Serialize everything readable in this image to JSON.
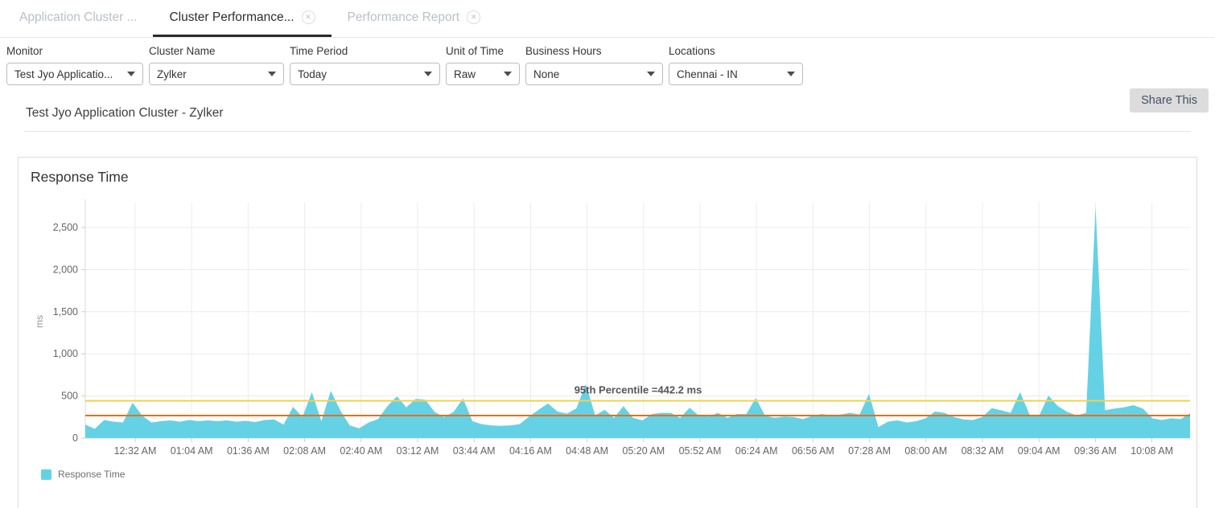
{
  "tabs": [
    {
      "label": "Application Cluster ...",
      "active": false,
      "closable": false
    },
    {
      "label": "Cluster Performance...",
      "active": true,
      "closable": true
    },
    {
      "label": "Performance Report",
      "active": false,
      "closable": true
    }
  ],
  "close_icon": "✕",
  "filters": [
    {
      "label": "Monitor",
      "value": "Test Jyo Applicatio..."
    },
    {
      "label": "Cluster Name",
      "value": "Zylker"
    },
    {
      "label": "Time Period",
      "value": "Today"
    },
    {
      "label": "Unit of Time",
      "value": "Raw"
    },
    {
      "label": "Business Hours",
      "value": "None"
    },
    {
      "label": "Locations",
      "value": "Chennai - IN"
    }
  ],
  "toolbar": {
    "share_label": "Share This"
  },
  "page_title": "Test Jyo Application Cluster - Zylker",
  "panel": {
    "title": "Response Time"
  },
  "chart_data": {
    "type": "area",
    "title": "Response Time",
    "ylabel": "ms",
    "ylim": [
      0,
      2750
    ],
    "y_ticks": [
      0,
      500,
      1000,
      1500,
      2000,
      2500
    ],
    "y_tick_labels": [
      "0",
      "500",
      "1,000",
      "1,500",
      "2,000",
      "2,500"
    ],
    "x_ticks": [
      "12:32 AM",
      "01:04 AM",
      "01:36 AM",
      "02:08 AM",
      "02:40 AM",
      "03:12 AM",
      "03:44 AM",
      "04:16 AM",
      "04:48 AM",
      "05:20 AM",
      "05:52 AM",
      "06:24 AM",
      "06:56 AM",
      "07:28 AM",
      "08:00 AM",
      "08:32 AM",
      "09:04 AM",
      "09:36 AM",
      "10:08 AM"
    ],
    "grid": true,
    "legend_position": "bottom-left",
    "series": [
      {
        "name": "Response Time",
        "color": "#65d1e5",
        "values": [
          160,
          110,
          215,
          195,
          185,
          420,
          270,
          185,
          200,
          210,
          195,
          215,
          200,
          210,
          200,
          210,
          195,
          205,
          190,
          215,
          220,
          160,
          370,
          250,
          545,
          200,
          560,
          330,
          150,
          115,
          185,
          225,
          380,
          495,
          365,
          465,
          455,
          310,
          250,
          310,
          470,
          200,
          165,
          150,
          145,
          150,
          165,
          255,
          335,
          410,
          315,
          290,
          350,
          640,
          270,
          335,
          240,
          380,
          240,
          210,
          285,
          300,
          300,
          240,
          360,
          265,
          255,
          300,
          240,
          285,
          285,
          475,
          265,
          240,
          255,
          250,
          225,
          265,
          285,
          270,
          280,
          300,
          280,
          525,
          130,
          195,
          210,
          185,
          200,
          235,
          315,
          300,
          250,
          220,
          215,
          250,
          355,
          330,
          300,
          545,
          280,
          260,
          505,
          380,
          310,
          270,
          300,
          2740,
          330,
          350,
          365,
          390,
          350,
          235,
          215,
          235,
          225,
          295
        ]
      }
    ],
    "reference_lines": [
      {
        "label": "95th Percentile =442.2 ms",
        "value": 442.2,
        "color": "#f2d24b"
      },
      {
        "label": "",
        "value": 267,
        "color": "#e2711d"
      }
    ],
    "legend": [
      "Response Time"
    ]
  }
}
